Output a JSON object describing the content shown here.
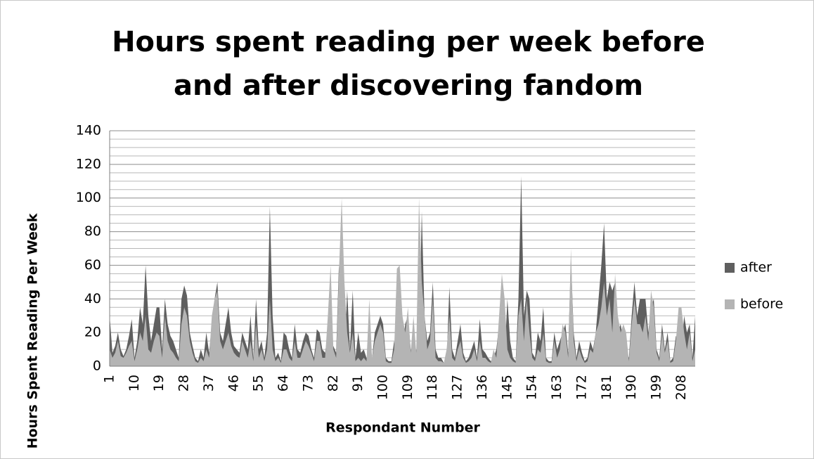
{
  "chart_data": {
    "type": "area",
    "title": "Hours spent reading per week before and after discovering fandom",
    "xlabel": "Respondant Number",
    "ylabel": "Hours Spent Reading Per Week",
    "categories": [
      "1",
      null,
      null,
      null,
      null,
      null,
      null,
      null,
      null,
      "10",
      null,
      null,
      null,
      null,
      null,
      null,
      null,
      null,
      "19",
      null,
      null,
      null,
      null,
      null,
      null,
      null,
      null,
      "28",
      null,
      null,
      null,
      null,
      null,
      null,
      null,
      null,
      "37",
      null,
      null,
      null,
      null,
      null,
      null,
      null,
      null,
      "46",
      null,
      null,
      null,
      null,
      null,
      null,
      null,
      null,
      "55",
      null,
      null,
      null,
      null,
      null,
      null,
      null,
      null,
      "64",
      null,
      null,
      null,
      null,
      null,
      null,
      null,
      null,
      "73",
      null,
      null,
      null,
      null,
      null,
      null,
      null,
      null,
      "82",
      null,
      null,
      null,
      null,
      null,
      null,
      null,
      null,
      "91",
      null,
      null,
      null,
      null,
      null,
      null,
      null,
      null,
      "100",
      null,
      null,
      null,
      null,
      null,
      null,
      null,
      null,
      "109",
      null,
      null,
      null,
      null,
      null,
      null,
      null,
      null,
      "118",
      null,
      null,
      null,
      null,
      null,
      null,
      null,
      null,
      "127",
      null,
      null,
      null,
      null,
      null,
      null,
      null,
      null,
      "136",
      null,
      null,
      null,
      null,
      null,
      null,
      null,
      null,
      "145",
      null,
      null,
      null,
      null,
      null,
      null,
      null,
      null,
      "154",
      null,
      null,
      null,
      null,
      null,
      null,
      null,
      null,
      "163",
      null,
      null,
      null,
      null,
      null,
      null,
      null,
      null,
      "172",
      null,
      null,
      null,
      null,
      null,
      null,
      null,
      null,
      "181",
      null,
      null,
      null,
      null,
      null,
      null,
      null,
      null,
      "190",
      null,
      null,
      null,
      null,
      null,
      null,
      null,
      null,
      "199",
      null,
      null,
      null,
      null,
      null,
      null,
      null,
      null,
      "208",
      null,
      null,
      null,
      null,
      null
    ],
    "series": [
      {
        "name": "after",
        "color": "#5f5f5f",
        "values": [
          30,
          8,
          12,
          20,
          10,
          6,
          10,
          18,
          28,
          5,
          15,
          35,
          25,
          60,
          30,
          15,
          25,
          35,
          35,
          10,
          40,
          25,
          18,
          15,
          10,
          5,
          40,
          48,
          42,
          20,
          12,
          5,
          3,
          10,
          5,
          20,
          8,
          25,
          40,
          50,
          20,
          15,
          25,
          35,
          20,
          12,
          10,
          8,
          20,
          15,
          10,
          30,
          5,
          40,
          10,
          15,
          5,
          20,
          95,
          30,
          5,
          8,
          3,
          20,
          18,
          10,
          5,
          25,
          10,
          8,
          15,
          20,
          18,
          10,
          5,
          22,
          20,
          10,
          8,
          20,
          5,
          12,
          8,
          60,
          15,
          5,
          45,
          10,
          45,
          5,
          20,
          8,
          10,
          5,
          3,
          5,
          20,
          25,
          30,
          25,
          5,
          3,
          3,
          15,
          5,
          5,
          10,
          25,
          30,
          10,
          5,
          10,
          10,
          92,
          30,
          15,
          20,
          50,
          10,
          5,
          5,
          2,
          3,
          47,
          10,
          5,
          15,
          25,
          8,
          3,
          5,
          10,
          15,
          5,
          28,
          10,
          8,
          5,
          3,
          5,
          10,
          25,
          30,
          5,
          40,
          15,
          5,
          3,
          40,
          113,
          30,
          45,
          40,
          8,
          5,
          20,
          15,
          35,
          5,
          3,
          3,
          20,
          10,
          15,
          20,
          25,
          8,
          65,
          20,
          5,
          15,
          8,
          3,
          5,
          15,
          10,
          20,
          40,
          60,
          85,
          40,
          50,
          45,
          50,
          20,
          25,
          15,
          10,
          5,
          30,
          50,
          30,
          40,
          40,
          40,
          20,
          35,
          40,
          10,
          5,
          25,
          10,
          20,
          3,
          5,
          18,
          15,
          8,
          30,
          20,
          25,
          5,
          30
        ]
      },
      {
        "name": "before",
        "color": "#b4b4b4",
        "values": [
          10,
          5,
          8,
          15,
          6,
          5,
          8,
          12,
          15,
          3,
          10,
          20,
          15,
          30,
          10,
          8,
          15,
          20,
          18,
          5,
          30,
          15,
          10,
          8,
          5,
          3,
          25,
          35,
          30,
          15,
          8,
          3,
          2,
          5,
          3,
          10,
          5,
          30,
          40,
          45,
          15,
          10,
          15,
          20,
          12,
          8,
          6,
          5,
          15,
          10,
          5,
          15,
          3,
          25,
          5,
          10,
          3,
          10,
          40,
          10,
          3,
          5,
          2,
          10,
          10,
          5,
          3,
          15,
          5,
          5,
          10,
          15,
          12,
          8,
          3,
          15,
          15,
          5,
          5,
          30,
          60,
          10,
          5,
          55,
          100,
          50,
          20,
          8,
          20,
          3,
          5,
          3,
          5,
          3,
          40,
          5,
          15,
          20,
          25,
          20,
          3,
          2,
          2,
          10,
          58,
          60,
          30,
          20,
          35,
          8,
          30,
          8,
          100,
          50,
          30,
          10,
          15,
          40,
          5,
          3,
          3,
          2,
          10,
          30,
          5,
          3,
          10,
          15,
          5,
          2,
          3,
          5,
          10,
          3,
          15,
          5,
          5,
          3,
          2,
          10,
          5,
          30,
          55,
          40,
          10,
          5,
          3,
          2,
          30,
          40,
          15,
          40,
          20,
          5,
          3,
          10,
          8,
          20,
          3,
          2,
          2,
          15,
          5,
          10,
          25,
          20,
          5,
          70,
          15,
          3,
          10,
          5,
          2,
          3,
          10,
          8,
          20,
          25,
          35,
          50,
          30,
          40,
          20,
          55,
          30,
          20,
          25,
          20,
          3,
          25,
          40,
          25,
          25,
          20,
          30,
          15,
          45,
          35,
          8,
          3,
          20,
          8,
          15,
          2,
          3,
          15,
          35,
          35,
          20,
          10,
          20,
          3,
          10
        ]
      }
    ],
    "ylim": [
      0,
      140
    ],
    "yticks": [
      0,
      20,
      40,
      60,
      80,
      100,
      120,
      140
    ],
    "minor_yticks": [
      5,
      10,
      15,
      25,
      30,
      35,
      45,
      50,
      55,
      65,
      70,
      75,
      85,
      90,
      95,
      105,
      110,
      115,
      125,
      130,
      135
    ],
    "grid": true,
    "legend": "right"
  }
}
